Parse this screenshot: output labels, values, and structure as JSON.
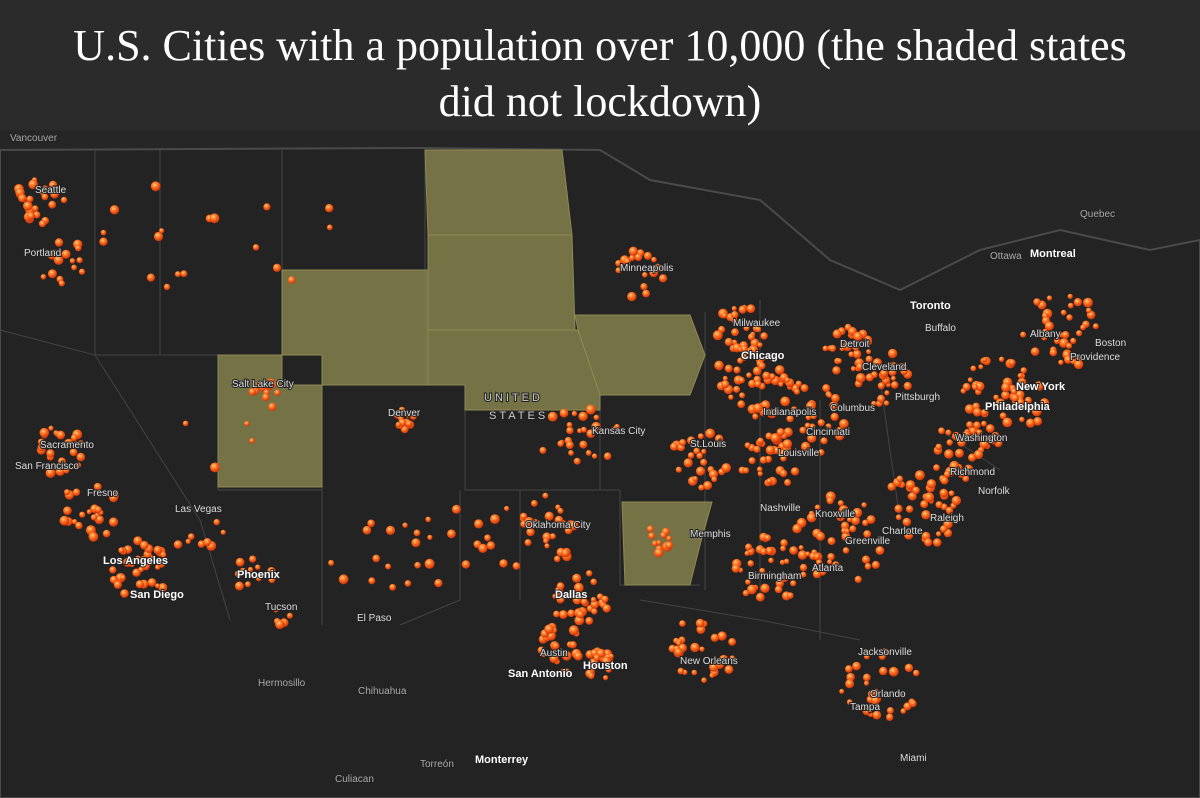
{
  "title": "U.S. Cities with a population over 10,000 (the shaded states did not lockdown)",
  "labels": [
    "Vancouver",
    "Seattle",
    "Portland",
    "Sacramento",
    "San Francisco",
    "Fresno",
    "Los Angeles",
    "San Diego",
    "Las Vegas",
    "Phoenix",
    "Tucson",
    "El Paso",
    "Salt Lake City",
    "Denver",
    "UNITED",
    "STATES",
    "Minneapolis",
    "Milwaukee",
    "Chicago",
    "Detroit",
    "Toronto",
    "Buffalo",
    "Ottawa",
    "Montreal",
    "Quebec",
    "Albany",
    "Boston",
    "Providence",
    "New York",
    "Philadelphia",
    "Washington",
    "Richmond",
    "Norfolk",
    "Cleveland",
    "Pittsburgh",
    "Columbus",
    "Indianapolis",
    "Cincinnati",
    "Louisville",
    "Kansas City",
    "St.Louis",
    "Oklahoma City",
    "Memphis",
    "Nashville",
    "Knoxville",
    "Charlotte",
    "Raleigh",
    "Greenville",
    "Birmingham",
    "Atlanta",
    "Dallas",
    "Austin",
    "San Antonio",
    "Houston",
    "New Orleans",
    "Jacksonville",
    "Orlando",
    "Tampa",
    "Miami",
    "Hermosillo",
    "Chihuahua",
    "Torreón",
    "Monterrey",
    "Culiacan"
  ]
}
